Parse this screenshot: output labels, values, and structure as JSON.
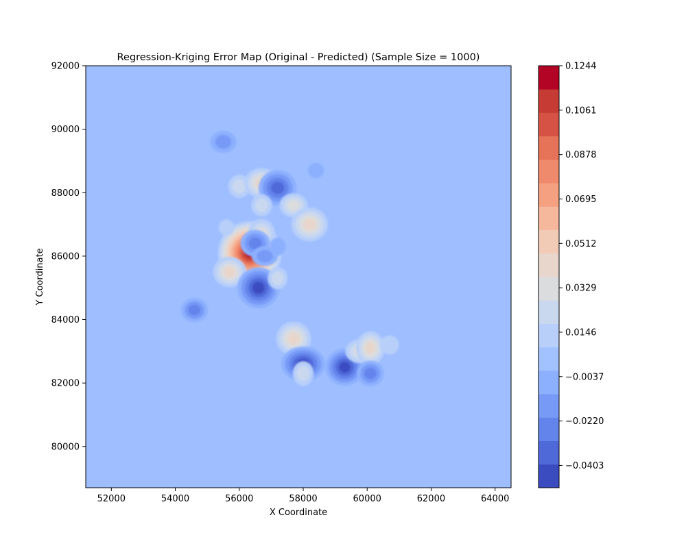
{
  "chart_data": {
    "type": "heatmap",
    "subtype": "filled-contour",
    "title": "Regression-Kriging Error Map (Original - Predicted) (Sample Size = 1000)",
    "xlabel": "X Coordinate",
    "ylabel": "Y Coordinate",
    "xlim": [
      51200,
      64500
    ],
    "ylim": [
      78700,
      92000
    ],
    "xticks": [
      "52000",
      "54000",
      "56000",
      "58000",
      "60000",
      "62000",
      "64000"
    ],
    "yticks": [
      "80000",
      "82000",
      "84000",
      "86000",
      "88000",
      "90000",
      "92000"
    ],
    "colormap": "coolwarm",
    "background_color": "#9ebeff",
    "colorbar": {
      "vmin": -0.0495,
      "vmax": 0.1244,
      "levels": 19,
      "ticks": [
        "0.1244",
        "0.1061",
        "0.0878",
        "0.0695",
        "0.0512",
        "0.0329",
        "0.0146",
        "−0.0037",
        "−0.0220",
        "−0.0403"
      ],
      "colors": [
        "#3b4cc0",
        "#4f69d9",
        "#6384eb",
        "#779af7",
        "#8db0fe",
        "#a2c1ff",
        "#b7cff9",
        "#cad8ef",
        "#dbdcde",
        "#e8d6cc",
        "#f2cbb7",
        "#f6b89c",
        "#f5a081",
        "#f08a6c",
        "#e67258",
        "#d65244",
        "#c63c35",
        "#b40426"
      ]
    },
    "features": [
      {
        "x": 56330,
        "y": 86100,
        "value": 0.1244
      },
      {
        "x": 56000,
        "y": 88200,
        "value": 0.02
      },
      {
        "x": 56700,
        "y": 88300,
        "value": 0.04
      },
      {
        "x": 57200,
        "y": 88150,
        "value": -0.035
      },
      {
        "x": 56700,
        "y": 87600,
        "value": 0.02
      },
      {
        "x": 57700,
        "y": 87600,
        "value": 0.035
      },
      {
        "x": 58200,
        "y": 87000,
        "value": 0.04
      },
      {
        "x": 55600,
        "y": 86900,
        "value": 0.01
      },
      {
        "x": 56700,
        "y": 86700,
        "value": 0.03
      },
      {
        "x": 56500,
        "y": 86400,
        "value": -0.03
      },
      {
        "x": 56800,
        "y": 86000,
        "value": -0.02
      },
      {
        "x": 57200,
        "y": 86300,
        "value": -0.01
      },
      {
        "x": 55700,
        "y": 85500,
        "value": 0.045
      },
      {
        "x": 56600,
        "y": 85000,
        "value": -0.04
      },
      {
        "x": 57200,
        "y": 85300,
        "value": 0.02
      },
      {
        "x": 54600,
        "y": 84300,
        "value": -0.03
      },
      {
        "x": 57700,
        "y": 83400,
        "value": 0.045
      },
      {
        "x": 58000,
        "y": 82600,
        "value": -0.04
      },
      {
        "x": 58000,
        "y": 82300,
        "value": 0.02
      },
      {
        "x": 59300,
        "y": 82500,
        "value": -0.045
      },
      {
        "x": 59800,
        "y": 83000,
        "value": 0.035
      },
      {
        "x": 60100,
        "y": 83100,
        "value": 0.045
      },
      {
        "x": 60100,
        "y": 82300,
        "value": -0.025
      },
      {
        "x": 60700,
        "y": 83200,
        "value": 0.01
      },
      {
        "x": 55500,
        "y": 89600,
        "value": -0.015
      },
      {
        "x": 58400,
        "y": 88700,
        "value": -0.01
      }
    ]
  }
}
